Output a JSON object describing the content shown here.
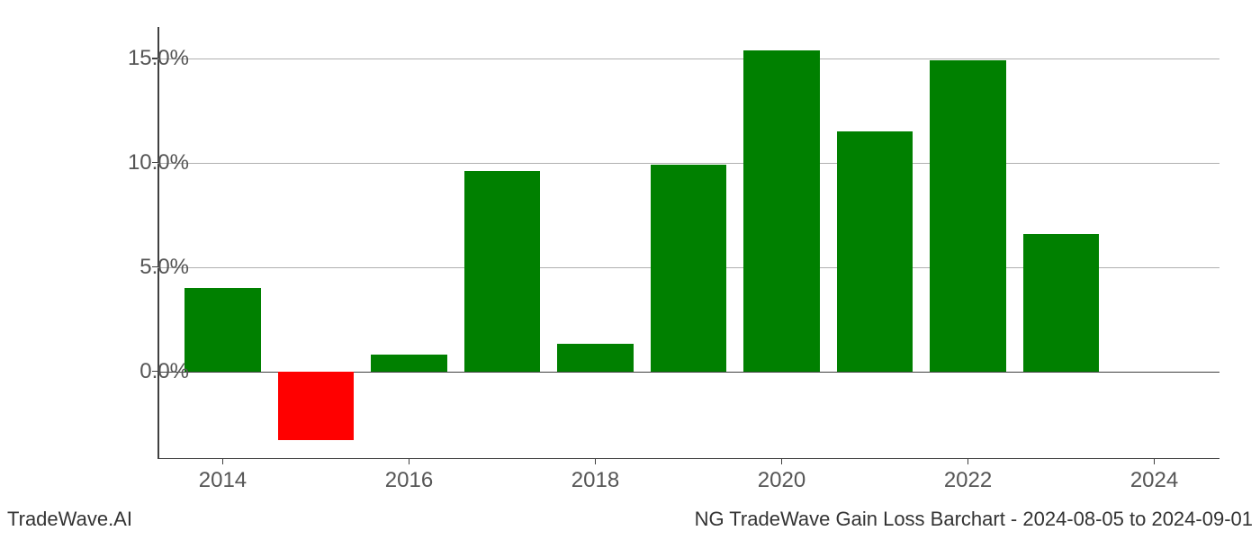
{
  "chart": {
    "type": "bar",
    "years": [
      2014,
      2015,
      2016,
      2017,
      2018,
      2019,
      2020,
      2021,
      2022,
      2023
    ],
    "values": [
      4.0,
      -3.3,
      0.8,
      9.6,
      1.3,
      9.9,
      15.4,
      11.5,
      14.9,
      6.6
    ],
    "ylim": [
      -4.2,
      16.5
    ],
    "xlim": [
      2013.3,
      2024.7
    ],
    "yticks": [
      0,
      5,
      10,
      15
    ],
    "ytick_labels": [
      "0.0%",
      "5.0%",
      "10.0%",
      "15.0%"
    ],
    "xticks": [
      2014,
      2016,
      2018,
      2020,
      2022,
      2024
    ],
    "xtick_labels": [
      "2014",
      "2016",
      "2018",
      "2020",
      "2022",
      "2024"
    ],
    "positive_color": "#008000",
    "negative_color": "#ff0000",
    "grid_color": "#b0b0b0",
    "axis_color": "#404040",
    "tick_label_color": "#555555",
    "tick_fontsize": 24,
    "background_color": "#ffffff",
    "bar_width_years": 0.82
  },
  "footer": {
    "left": "TradeWave.AI",
    "right": "NG TradeWave Gain Loss Barchart - 2024-08-05 to 2024-09-01",
    "fontsize": 22,
    "color": "#333333"
  }
}
